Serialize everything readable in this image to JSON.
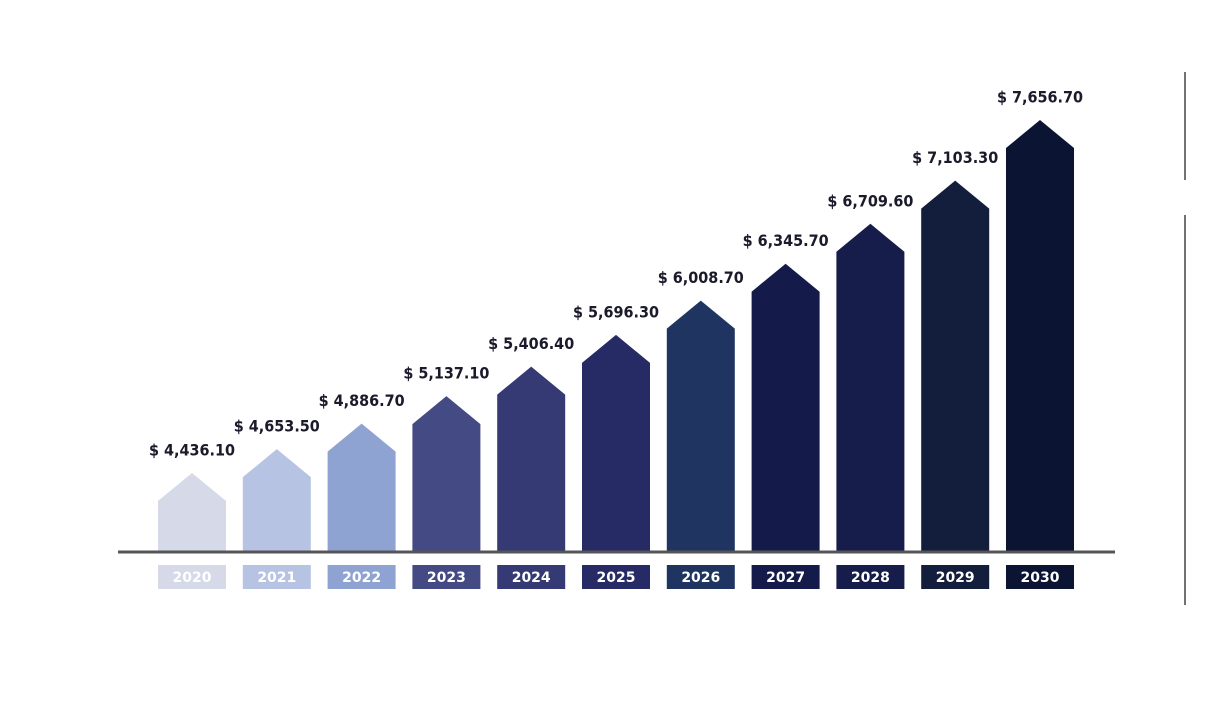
{
  "chart_data": {
    "type": "arrow-bar",
    "categories": [
      "2020",
      "2021",
      "2022",
      "2023",
      "2024",
      "2025",
      "2026",
      "2027",
      "2028",
      "2029",
      "2030"
    ],
    "values": [
      4436.1,
      4653.5,
      4886.7,
      5137.1,
      5406.4,
      5696.3,
      6008.7,
      6345.7,
      6709.6,
      7103.3,
      7656.7
    ],
    "value_labels": [
      "$ 4,436.10",
      "$ 4,653.50",
      "$ 4,886.70",
      "$ 5,137.10",
      "$ 5,406.40",
      "$ 5,696.30",
      "$ 6,008.70",
      "$ 6,345.70",
      "$ 6,709.60",
      "$ 7,103.30",
      "$ 7,656.70"
    ],
    "colors": [
      "#d5d9e8",
      "#b7c3e3",
      "#8fa3d3",
      "#444a84",
      "#353a75",
      "#262a65",
      "#1f3460",
      "#141a4a",
      "#161d4a",
      "#131d3c",
      "#0b1433"
    ]
  }
}
